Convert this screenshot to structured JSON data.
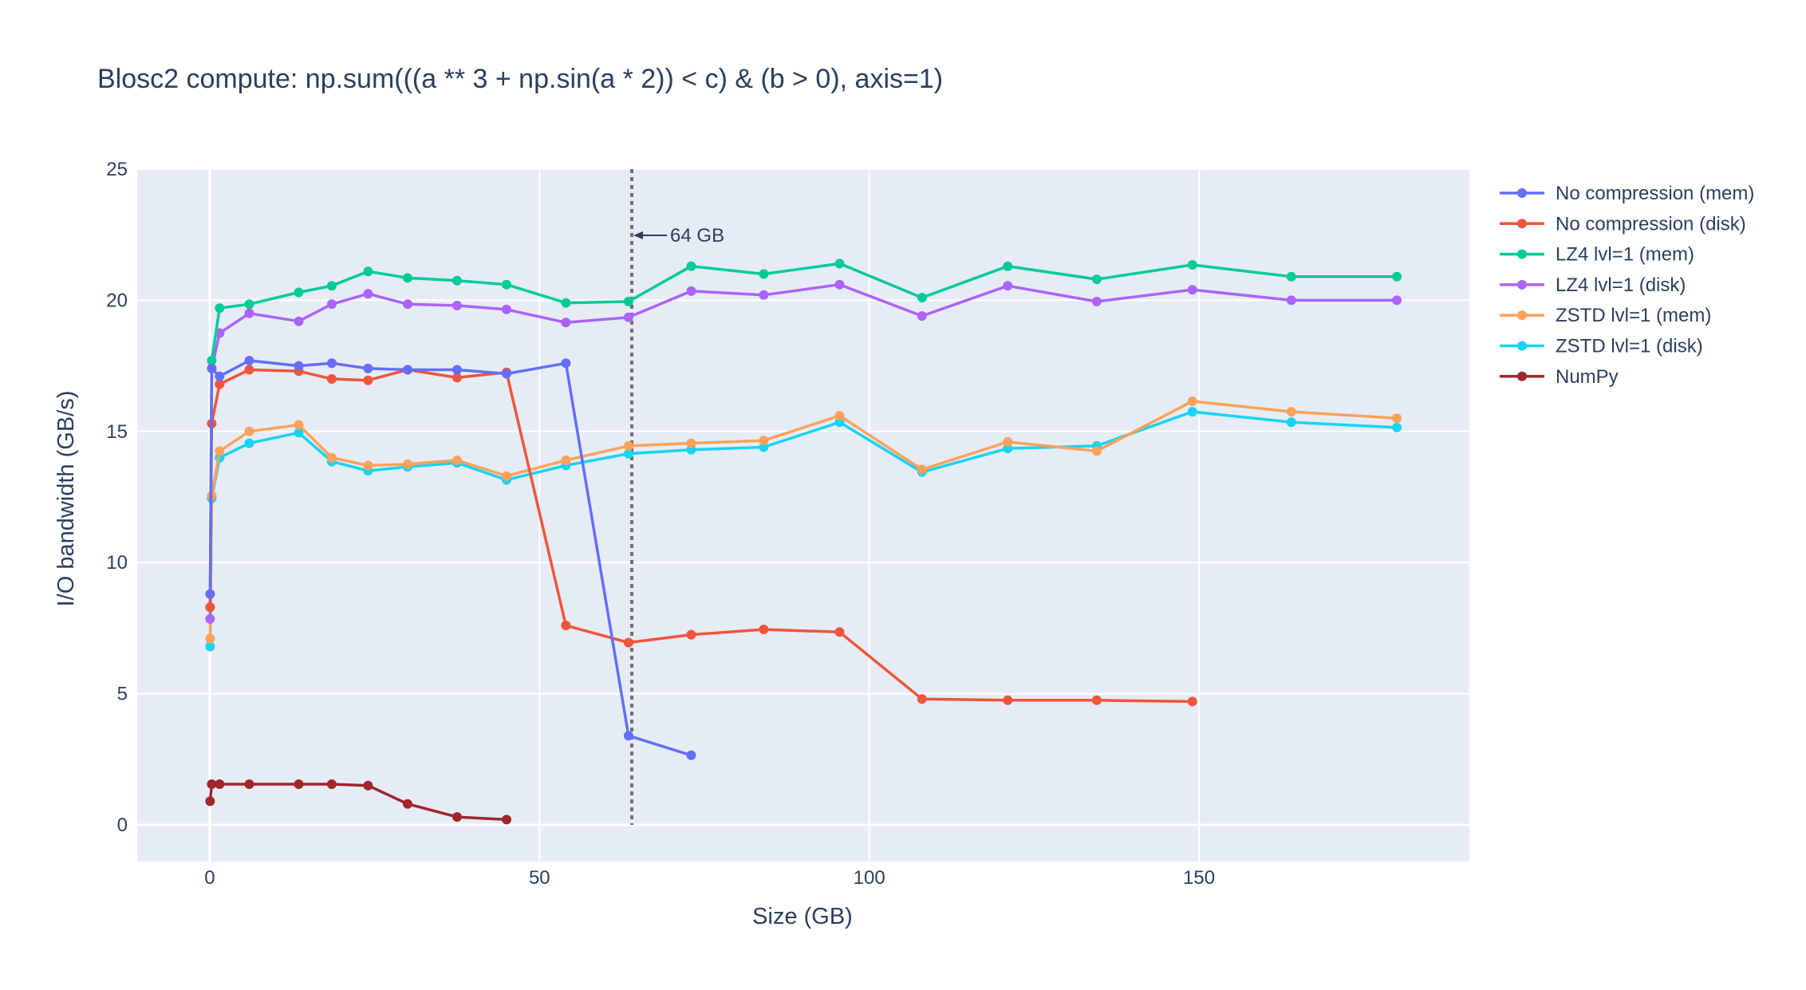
{
  "chart_data": {
    "type": "line",
    "title": "Blosc2 compute: np.sum(((a ** 3 + np.sin(a * 2)) < c) & (b > 0), axis=1)",
    "xlabel": "Size (GB)",
    "ylabel": "I/O bandwidth (GB/s)",
    "xlim": [
      -11,
      191
    ],
    "ylim": [
      -1.4,
      25
    ],
    "xticks": [
      0,
      50,
      100,
      150
    ],
    "yticks": [
      0,
      5,
      10,
      15,
      20,
      25
    ],
    "grid": true,
    "legend_position": "right",
    "annotation": {
      "text": "64 GB",
      "x": 64
    },
    "series": [
      {
        "name": "No compression (mem)",
        "color": "#636efa",
        "x": [
          0.05,
          0.3,
          1.5,
          6,
          13.5,
          18.5,
          24,
          30,
          37.5,
          45,
          54,
          63.5,
          73
        ],
        "y": [
          8.8,
          17.4,
          17.1,
          17.7,
          17.5,
          17.6,
          17.4,
          17.35,
          17.35,
          17.2,
          17.6,
          3.4,
          2.65
        ]
      },
      {
        "name": "No compression (disk)",
        "color": "#ef553b",
        "x": [
          0.05,
          0.3,
          1.5,
          6,
          13.5,
          18.5,
          24,
          30,
          37.5,
          45,
          54,
          63.5,
          73,
          84,
          95.5,
          108,
          121,
          134.5,
          149
        ],
        "y": [
          8.3,
          15.3,
          16.8,
          17.35,
          17.3,
          17.0,
          16.95,
          17.35,
          17.05,
          17.25,
          7.6,
          6.95,
          7.25,
          7.45,
          7.35,
          4.8,
          4.75,
          4.75,
          4.7
        ]
      },
      {
        "name": "LZ4 lvl=1 (mem)",
        "color": "#00cc96",
        "x": [
          0.05,
          0.3,
          1.5,
          6,
          13.5,
          18.5,
          24,
          30,
          37.5,
          45,
          54,
          63.5,
          73,
          84,
          95.5,
          108,
          121,
          134.5,
          149,
          164,
          180
        ],
        "y": [
          8.3,
          17.7,
          19.7,
          19.85,
          20.3,
          20.55,
          21.1,
          20.85,
          20.75,
          20.6,
          19.9,
          19.95,
          21.3,
          21.0,
          21.4,
          20.1,
          21.3,
          20.8,
          21.35,
          20.9,
          20.9
        ]
      },
      {
        "name": "LZ4 lvl=1 (disk)",
        "color": "#ab63fa",
        "x": [
          0.05,
          0.3,
          1.5,
          6,
          13.5,
          18.5,
          24,
          30,
          37.5,
          45,
          54,
          63.5,
          73,
          84,
          95.5,
          108,
          121,
          134.5,
          149,
          164,
          180
        ],
        "y": [
          7.85,
          17.4,
          18.75,
          19.5,
          19.2,
          19.85,
          20.25,
          19.85,
          19.8,
          19.65,
          19.15,
          19.35,
          20.35,
          20.2,
          20.6,
          19.4,
          20.55,
          19.95,
          20.4,
          20.0,
          20.0
        ]
      },
      {
        "name": "ZSTD lvl=1 (mem)",
        "color": "#ffa15a",
        "x": [
          0.05,
          0.3,
          1.5,
          6,
          13.5,
          18.5,
          24,
          30,
          37.5,
          45,
          54,
          63.5,
          73,
          84,
          95.5,
          108,
          121,
          134.5,
          149,
          164,
          180
        ],
        "y": [
          7.1,
          12.55,
          14.25,
          15.0,
          15.25,
          14.0,
          13.7,
          13.75,
          13.9,
          13.3,
          13.9,
          14.45,
          14.55,
          14.65,
          15.6,
          13.55,
          14.6,
          14.25,
          16.15,
          15.75,
          15.5
        ]
      },
      {
        "name": "ZSTD lvl=1 (disk)",
        "color": "#19d3f3",
        "x": [
          0.05,
          0.3,
          1.5,
          6,
          13.5,
          18.5,
          24,
          30,
          37.5,
          45,
          54,
          63.5,
          73,
          84,
          95.5,
          108,
          121,
          134.5,
          149,
          164,
          180
        ],
        "y": [
          6.8,
          12.45,
          14.0,
          14.55,
          14.95,
          13.85,
          13.5,
          13.65,
          13.8,
          13.15,
          13.7,
          14.15,
          14.3,
          14.4,
          15.35,
          13.45,
          14.35,
          14.45,
          15.75,
          15.35,
          15.15
        ]
      },
      {
        "name": "NumPy",
        "color": "#a0262a",
        "x": [
          0.05,
          0.3,
          1.5,
          6,
          13.5,
          18.5,
          24,
          30,
          37.5,
          45
        ],
        "y": [
          0.9,
          1.55,
          1.55,
          1.55,
          1.55,
          1.55,
          1.5,
          0.8,
          0.3,
          0.2
        ]
      }
    ]
  }
}
